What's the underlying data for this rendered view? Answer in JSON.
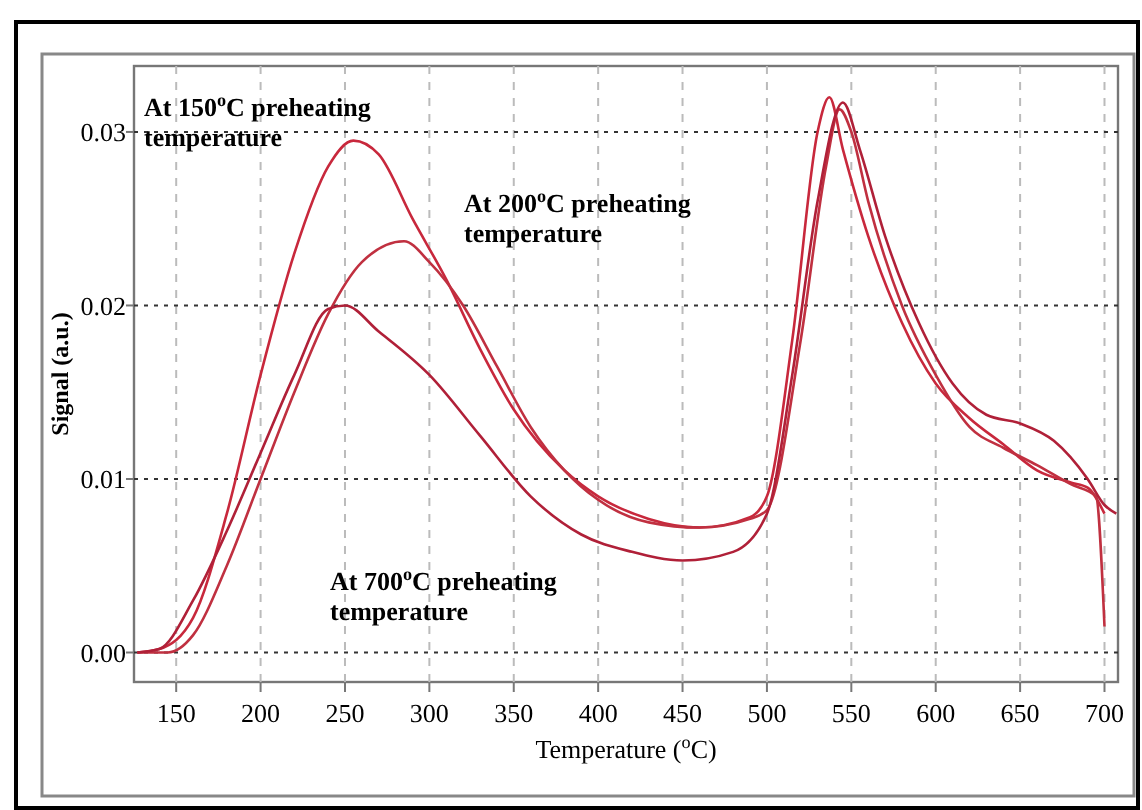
{
  "chart_data": {
    "type": "line",
    "xlabel": "Temperature ($^{o}$C)",
    "ylabel": "Signal (a.u.)",
    "xlim": [
      125,
      708
    ],
    "ylim": [
      -0.0017,
      0.0338
    ],
    "xticks": [
      150,
      200,
      250,
      300,
      350,
      400,
      450,
      500,
      550,
      600,
      650,
      700
    ],
    "yticks": [
      {
        "value": 0,
        "label": "0.00"
      },
      {
        "value": 0.01,
        "label": "0.01"
      },
      {
        "value": 0.02,
        "label": "0.02"
      },
      {
        "value": 0.03,
        "label": "0.03"
      }
    ],
    "grid": true,
    "line_style": "solid",
    "annotations": [
      "At 150$^{o}$C preheating\ntemperature",
      "At 200$^{o}$C preheating\ntemperature",
      "At 700$^{o}$C preheating\ntemperature"
    ],
    "series": [
      {
        "color": "#c8283c",
        "x": [
          127,
          140,
          160,
          180,
          200,
          220,
          240,
          255,
          270,
          290,
          310,
          330,
          350,
          380,
          400,
          430,
          460,
          490,
          500,
          515,
          530,
          537,
          545,
          560,
          580,
          600,
          620,
          640,
          660,
          680,
          690,
          700
        ],
        "values": [
          0,
          0.0002,
          0.002,
          0.008,
          0.016,
          0.023,
          0.028,
          0.0295,
          0.0287,
          0.025,
          0.0215,
          0.0175,
          0.014,
          0.0105,
          0.009,
          0.0077,
          0.0072,
          0.0078,
          0.009,
          0.018,
          0.03,
          0.032,
          0.029,
          0.024,
          0.019,
          0.0155,
          0.0135,
          0.012,
          0.0105,
          0.0098,
          0.0095,
          0.008
        ]
      },
      {
        "color": "#c03040",
        "x": [
          127,
          145,
          160,
          180,
          200,
          220,
          240,
          260,
          285,
          300,
          320,
          340,
          360,
          380,
          400,
          430,
          460,
          490,
          500,
          520,
          535,
          543,
          550,
          560,
          580,
          600,
          620,
          640,
          660,
          680,
          695,
          700
        ],
        "values": [
          0,
          0,
          0.001,
          0.005,
          0.01,
          0.015,
          0.0195,
          0.0225,
          0.0237,
          0.0225,
          0.02,
          0.0165,
          0.013,
          0.0105,
          0.0088,
          0.0075,
          0.0072,
          0.0077,
          0.0082,
          0.018,
          0.028,
          0.0313,
          0.03,
          0.026,
          0.02,
          0.016,
          0.013,
          0.0118,
          0.0108,
          0.0097,
          0.009,
          0.0015
        ]
      },
      {
        "color": "#b02038",
        "x": [
          127,
          140,
          160,
          180,
          200,
          220,
          240,
          250,
          270,
          300,
          330,
          360,
          390,
          420,
          450,
          480,
          500,
          515,
          530,
          545,
          555,
          570,
          590,
          610,
          630,
          650,
          670,
          690,
          700,
          707
        ],
        "values": [
          0,
          0.0002,
          0.003,
          0.007,
          0.0115,
          0.016,
          0.0198,
          0.02,
          0.0185,
          0.016,
          0.0125,
          0.009,
          0.0068,
          0.0058,
          0.0053,
          0.0058,
          0.008,
          0.016,
          0.026,
          0.0317,
          0.029,
          0.024,
          0.019,
          0.0155,
          0.0137,
          0.0132,
          0.0122,
          0.01,
          0.0085,
          0.008
        ]
      }
    ]
  }
}
